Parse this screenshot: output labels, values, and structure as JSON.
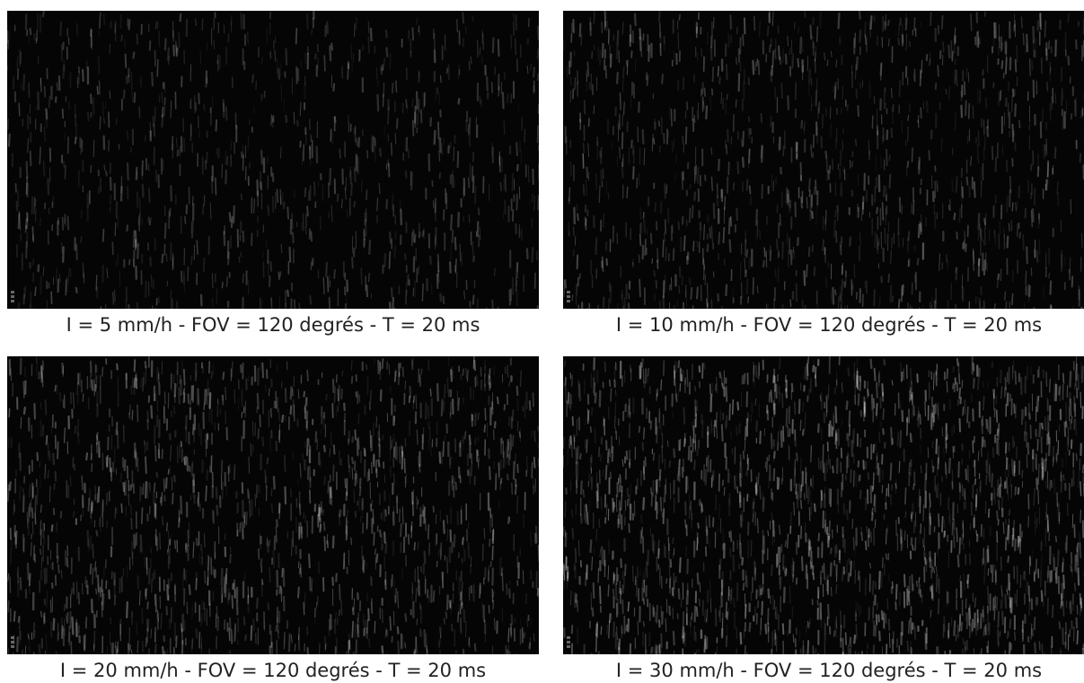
{
  "panels": [
    {
      "caption": "I = 5 mm/h - FOV = 120 degrés - T = 20 ms",
      "intensity_mm_h": 5,
      "streak_density": 0.28,
      "seed": 11
    },
    {
      "caption": "I = 10 mm/h - FOV = 120 degrés - T = 20 ms",
      "intensity_mm_h": 10,
      "streak_density": 0.45,
      "seed": 23
    },
    {
      "caption": "I = 20 mm/h - FOV = 120 degrés - T = 20 ms",
      "intensity_mm_h": 20,
      "streak_density": 0.72,
      "seed": 37
    },
    {
      "caption": "I = 30 mm/h - FOV = 120 degrés - T = 20 ms",
      "intensity_mm_h": 30,
      "streak_density": 1.0,
      "seed": 53
    }
  ],
  "colors": {
    "background": "#050505",
    "streak": "#ffffff"
  }
}
